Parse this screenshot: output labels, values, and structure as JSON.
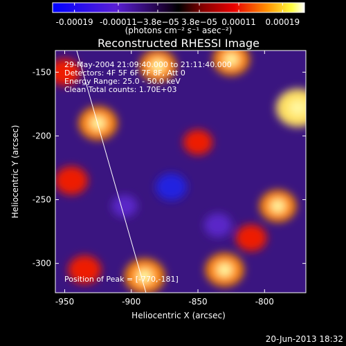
{
  "chart_data": {
    "type": "heatmap",
    "title": "Reconstructed RHESSI Image",
    "xlabel": "Heliocentric X (arcsec)",
    "ylabel": "Heliocentric Y (arcsec)",
    "xlim": [
      -957,
      -769
    ],
    "ylim": [
      -323,
      -133
    ],
    "x_ticks": [
      -950,
      -900,
      -850,
      -800
    ],
    "y_ticks": [
      -150,
      -200,
      -250,
      -300
    ],
    "colorbar": {
      "ticks": [
        "-0.00019",
        "-0.00011",
        "−3.8e−05",
        "3.8e−05",
        "0.00011",
        "0.00019"
      ],
      "tick_values": [
        -0.00019,
        -0.00011,
        -3.8e-05,
        3.8e-05,
        0.00011,
        0.00019
      ],
      "range": [
        -0.00023,
        0.00023
      ],
      "units_label": "(photons cm⁻² s⁻¹ asec⁻²)"
    },
    "annotations": [
      "29-May-2004 21:09:40.000 to 21:11:40.000",
      "Detectors: 4F 5F 6F 7F 8F, Att 0",
      "Energy Range: 25.0 - 50.0 keV",
      "Clean     Total counts: 1.70E+03"
    ],
    "peak_label": "Position of Peak = [-770,-181]",
    "limb_line": [
      [
        -941,
        -133
      ],
      [
        -889,
        -323
      ]
    ],
    "blobs": [
      {
        "x": -925,
        "y": -190,
        "value": 0.00016
      },
      {
        "x": -775,
        "y": -178,
        "value": 0.00019
      },
      {
        "x": -880,
        "y": -145,
        "value": 0.00015
      },
      {
        "x": -825,
        "y": -140,
        "value": 0.00015
      },
      {
        "x": -890,
        "y": -310,
        "value": 0.00017
      },
      {
        "x": -830,
        "y": -305,
        "value": 0.00016
      },
      {
        "x": -790,
        "y": -255,
        "value": 0.00015
      },
      {
        "x": -945,
        "y": -235,
        "value": 0.00013
      },
      {
        "x": -935,
        "y": -305,
        "value": 0.00013
      },
      {
        "x": -850,
        "y": -205,
        "value": 0.00011
      },
      {
        "x": -810,
        "y": -280,
        "value": 0.00012
      },
      {
        "x": -950,
        "y": -150,
        "value": 0.00012
      },
      {
        "x": -870,
        "y": -240,
        "value": -0.00012
      },
      {
        "x": -835,
        "y": -270,
        "value": -0.0001
      },
      {
        "x": -905,
        "y": -255,
        "value": -9e-05
      }
    ]
  },
  "footer": {
    "timestamp": "20-Jun-2013 18:32"
  }
}
